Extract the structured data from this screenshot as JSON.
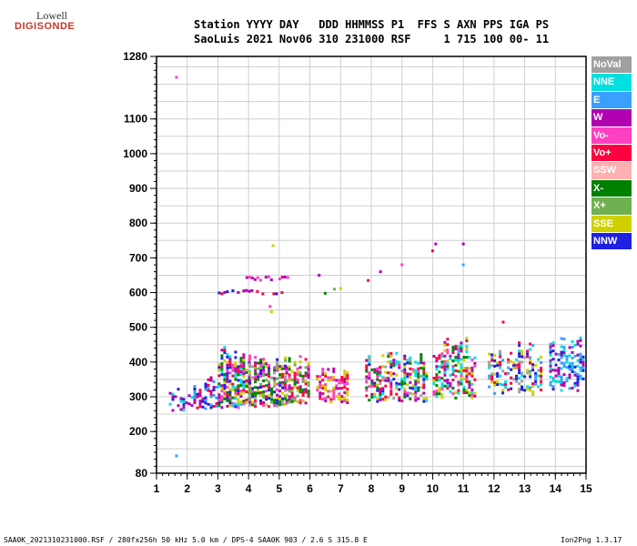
{
  "logo": {
    "line1": "Lowell",
    "line2": "DIGISONDE"
  },
  "header": {
    "line1": "Station YYYY DAY   DDD HHMMSS P1  FFS S AXN PPS IGA PS",
    "line2": "SaoLuis 2021 Nov06 310 231000 RSF     1 715 100 00- 11"
  },
  "legend": [
    {
      "label": "NoVal",
      "color": "#a0a0a0"
    },
    {
      "label": "NNE",
      "color": "#00e0e0"
    },
    {
      "label": "E",
      "color": "#3aa0ff"
    },
    {
      "label": "W",
      "color": "#b000b0"
    },
    {
      "label": "Vo-",
      "color": "#ff40c0"
    },
    {
      "label": "Vo+",
      "color": "#ff0040"
    },
    {
      "label": "SSW",
      "color": "#ffb0b0"
    },
    {
      "label": "X-",
      "color": "#008000"
    },
    {
      "label": "X+",
      "color": "#70b050"
    },
    {
      "label": "SSE",
      "color": "#d0d000"
    },
    {
      "label": "NNW",
      "color": "#2020e0"
    }
  ],
  "footer": {
    "left": "SAA0K_2021310231000.RSF / 280fx256h 50 kHz 5.0 km / DPS-4 SAA0K 903 / 2.6 S 315.8 E",
    "right": "Ion2Png 1.3.17"
  },
  "chart_data": {
    "type": "scatter",
    "title": "",
    "xlabel": "",
    "ylabel": "",
    "xlim": [
      1,
      15
    ],
    "ylim": [
      80,
      1280
    ],
    "x_ticks": [
      "1",
      "2",
      "3",
      "4",
      "5",
      "6",
      "7",
      "8",
      "9",
      "10",
      "11",
      "12",
      "13",
      "14",
      "15"
    ],
    "y_ticks": [
      "80",
      "200",
      "300",
      "400",
      "500",
      "600",
      "700",
      "800",
      "900",
      "1000",
      "1100",
      "1280"
    ],
    "grid": true,
    "clusters": [
      {
        "x": [
          1.4,
          2.2
        ],
        "y": [
          260,
          330
        ],
        "density": 0.35,
        "colors": [
          "#2020e0",
          "#b000b0",
          "#00e0e0"
        ]
      },
      {
        "x": [
          2.2,
          3.0
        ],
        "y": [
          270,
          360
        ],
        "density": 0.5,
        "colors": [
          "#2020e0",
          "#b000b0",
          "#ff0040",
          "#3aa0ff"
        ]
      },
      {
        "x": [
          3.0,
          4.0
        ],
        "y": [
          270,
          450
        ],
        "density": 0.7,
        "colors": [
          "#2020e0",
          "#b000b0",
          "#ff0040",
          "#ff40c0",
          "#008000",
          "#00e0e0",
          "#d0d000"
        ]
      },
      {
        "x": [
          4.0,
          5.2
        ],
        "y": [
          275,
          440
        ],
        "density": 0.65,
        "colors": [
          "#2020e0",
          "#b000b0",
          "#ff0040",
          "#ff40c0",
          "#008000",
          "#70b050",
          "#d0d000",
          "#a0a0a0"
        ]
      },
      {
        "x": [
          5.2,
          6.0
        ],
        "y": [
          285,
          420
        ],
        "density": 0.6,
        "colors": [
          "#ff0040",
          "#ff40c0",
          "#b000b0",
          "#d0d000",
          "#008000",
          "#70b050"
        ]
      },
      {
        "x": [
          6.2,
          7.2
        ],
        "y": [
          285,
          400
        ],
        "density": 0.6,
        "colors": [
          "#ff0040",
          "#ff40c0",
          "#b000b0",
          "#d0d000"
        ]
      },
      {
        "x": [
          7.8,
          9.8
        ],
        "y": [
          290,
          430
        ],
        "density": 0.55,
        "colors": [
          "#ff0040",
          "#ff40c0",
          "#b000b0",
          "#2020e0",
          "#00e0e0",
          "#d0d000",
          "#008000",
          "#a0a0a0"
        ]
      },
      {
        "x": [
          10.0,
          11.4
        ],
        "y": [
          300,
          480
        ],
        "density": 0.55,
        "colors": [
          "#ff0040",
          "#ff40c0",
          "#b000b0",
          "#d0d000",
          "#008000",
          "#00e0e0"
        ]
      },
      {
        "x": [
          11.8,
          13.5
        ],
        "y": [
          310,
          460
        ],
        "density": 0.45,
        "colors": [
          "#00e0e0",
          "#3aa0ff",
          "#2020e0",
          "#a0a0a0",
          "#d0d000",
          "#ff0040"
        ]
      },
      {
        "x": [
          13.8,
          14.9
        ],
        "y": [
          320,
          480
        ],
        "density": 0.5,
        "colors": [
          "#00e0e0",
          "#3aa0ff",
          "#2020e0",
          "#b000b0"
        ]
      }
    ],
    "traces": [
      {
        "x": [
          3.0,
          5.1
        ],
        "y": [
          600,
          610
        ],
        "colors": [
          "#b000b0",
          "#ff0040",
          "#2020e0"
        ]
      },
      {
        "x": [
          3.9,
          5.3
        ],
        "y": [
          640,
          650
        ],
        "colors": [
          "#b000b0",
          "#ff40c0"
        ]
      }
    ],
    "points": [
      {
        "x": 1.65,
        "y": 1220,
        "color": "#ff40c0"
      },
      {
        "x": 1.65,
        "y": 130,
        "color": "#3aa0ff"
      },
      {
        "x": 4.8,
        "y": 735,
        "color": "#d0d000"
      },
      {
        "x": 10.0,
        "y": 720,
        "color": "#ff0040"
      },
      {
        "x": 10.1,
        "y": 740,
        "color": "#b000b0"
      },
      {
        "x": 11.0,
        "y": 740,
        "color": "#b000b0"
      },
      {
        "x": 11.0,
        "y": 680,
        "color": "#3aa0ff"
      },
      {
        "x": 9.0,
        "y": 680,
        "color": "#ff40c0"
      },
      {
        "x": 8.3,
        "y": 660,
        "color": "#b000b0"
      },
      {
        "x": 7.9,
        "y": 635,
        "color": "#ff0040"
      },
      {
        "x": 6.8,
        "y": 610,
        "color": "#70b050"
      },
      {
        "x": 7.0,
        "y": 612,
        "color": "#d0d000"
      },
      {
        "x": 6.5,
        "y": 598,
        "color": "#008000"
      },
      {
        "x": 4.7,
        "y": 560,
        "color": "#ff40c0"
      },
      {
        "x": 4.75,
        "y": 545,
        "color": "#d0d000"
      },
      {
        "x": 12.3,
        "y": 515,
        "color": "#ff0040"
      },
      {
        "x": 6.3,
        "y": 650,
        "color": "#b000b0"
      }
    ]
  }
}
